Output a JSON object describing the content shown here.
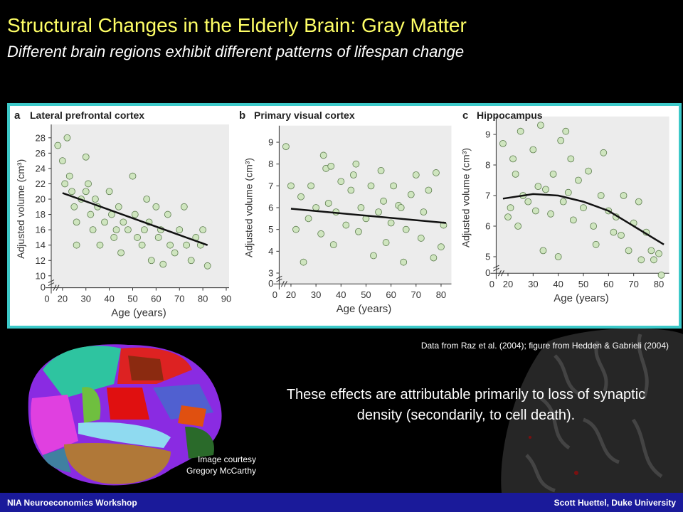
{
  "title": "Structural Changes in the Elderly Brain: Gray Matter",
  "subtitle": "Different brain regions exhibit different patterns of lifespan change",
  "source_note": "Data from Raz et al. (2004); figure from Hedden & Gabrieli (2004)",
  "body_text": "These effects are attributable primarily to loss of synaptic density (secondarily, to cell death).",
  "image_credit": [
    "Image courtesy",
    "Gregory McCarthy"
  ],
  "footer_left": "NIA Neuroeconomics Workshop",
  "footer_right": "Scott Huettel, Duke University",
  "chart_data": [
    {
      "type": "scatter",
      "panel_label": "a",
      "title": "Lateral prefrontal cortex",
      "xlabel": "Age (years)",
      "ylabel": "Adjusted volume (cm³)",
      "xlim": [
        17,
        90
      ],
      "xticks": [
        20,
        30,
        40,
        50,
        60,
        70,
        80,
        90
      ],
      "x_break_tick": 0,
      "ylim": [
        9,
        29
      ],
      "yticks": [
        10,
        12,
        14,
        16,
        18,
        20,
        22,
        24,
        26,
        28
      ],
      "y_break_tick": 0,
      "color": "#cfe5bf",
      "x": [
        18,
        22,
        20,
        21,
        23,
        24,
        25,
        26,
        28,
        30,
        31,
        32,
        33,
        35,
        36,
        38,
        40,
        41,
        42,
        44,
        45,
        46,
        48,
        50,
        51,
        52,
        54,
        56,
        57,
        58,
        60,
        61,
        62,
        63,
        65,
        66,
        68,
        70,
        72,
        73,
        75,
        77,
        79,
        80,
        82,
        26,
        30,
        34,
        43,
        55
      ],
      "values": [
        27,
        28,
        25,
        22,
        23,
        21,
        19,
        17,
        20,
        25.5,
        22,
        18,
        16,
        19,
        14,
        17,
        21,
        18,
        15,
        19,
        13,
        17,
        16,
        23,
        18,
        15,
        14,
        20,
        17,
        12,
        19,
        15,
        16,
        11.5,
        18,
        14,
        13,
        16,
        19,
        14,
        12,
        15,
        14,
        16,
        11.3,
        14,
        21,
        20,
        16,
        16
      ],
      "fit": {
        "x": [
          20,
          82
        ],
        "values": [
          20.8,
          14
        ],
        "color": "#111111"
      }
    },
    {
      "type": "scatter",
      "panel_label": "b",
      "title": "Primary visual cortex",
      "xlabel": "Age (years)",
      "ylabel": "Adjusted volume (cm³)",
      "xlim": [
        17,
        83
      ],
      "xticks": [
        20,
        30,
        40,
        50,
        60,
        70,
        80
      ],
      "x_break_tick": 0,
      "ylim": [
        2.7,
        9.5
      ],
      "yticks": [
        3,
        4,
        5,
        6,
        7,
        8,
        9
      ],
      "y_break_tick": 0,
      "color": "#cfe5bf",
      "x": [
        18,
        20,
        22,
        24,
        25,
        27,
        28,
        30,
        32,
        33,
        34,
        35,
        37,
        38,
        40,
        42,
        44,
        45,
        47,
        48,
        50,
        52,
        53,
        55,
        57,
        58,
        60,
        61,
        63,
        65,
        66,
        68,
        70,
        72,
        73,
        75,
        77,
        78,
        80,
        81,
        36,
        46,
        56,
        64
      ],
      "values": [
        8.8,
        7,
        5,
        6.5,
        3.5,
        5.5,
        7,
        6,
        4.8,
        8.4,
        7.8,
        6.2,
        4.3,
        5.8,
        7.2,
        5.2,
        6.8,
        7.5,
        4.9,
        6,
        5.5,
        7,
        3.8,
        5.8,
        6.3,
        4.4,
        5.3,
        7,
        6.1,
        3.5,
        5,
        6.6,
        7.5,
        4.6,
        5.8,
        6.8,
        3.7,
        7.6,
        4.2,
        5.2,
        7.9,
        8,
        7.7,
        6
      ],
      "fit": {
        "x": [
          20,
          82
        ],
        "values": [
          5.95,
          5.3
        ],
        "color": "#111111"
      }
    },
    {
      "type": "scatter",
      "panel_label": "c",
      "title": "Hippocampus",
      "xlabel": "Age (years)",
      "ylabel": "Adjusted volume (cm³)",
      "xlim": [
        17,
        83
      ],
      "xticks": [
        20,
        30,
        40,
        50,
        60,
        70,
        80
      ],
      "x_break_tick": 0,
      "ylim": [
        4.6,
        9.4
      ],
      "yticks": [
        5,
        6,
        7,
        8,
        9
      ],
      "y_break_tick": 0,
      "color": "#cfe5bf",
      "x": [
        18,
        20,
        21,
        22,
        23,
        24,
        25,
        26,
        28,
        30,
        31,
        32,
        33,
        34,
        35,
        37,
        38,
        40,
        41,
        42,
        43,
        44,
        46,
        48,
        50,
        52,
        54,
        55,
        57,
        58,
        60,
        62,
        63,
        65,
        66,
        68,
        70,
        72,
        73,
        75,
        77,
        78,
        80,
        81,
        45
      ],
      "values": [
        8.7,
        6.3,
        6.6,
        8.2,
        7.7,
        6,
        9.1,
        7,
        6.8,
        8.5,
        6.5,
        7.3,
        9.3,
        5.2,
        7.2,
        6.4,
        7.7,
        5,
        8.8,
        6.8,
        9.1,
        7.1,
        6.2,
        7.5,
        6.6,
        7.8,
        6,
        5.4,
        7,
        8.4,
        6.5,
        5.8,
        6.3,
        5.7,
        7,
        5.2,
        6.1,
        6.8,
        4.9,
        5.8,
        5.2,
        4.9,
        5.1,
        4.4,
        8.2
      ],
      "fit": {
        "x": [
          18,
          30,
          40,
          50,
          60,
          70,
          82
        ],
        "values": [
          6.9,
          7.05,
          7.0,
          6.8,
          6.5,
          6.0,
          5.4
        ],
        "color": "#111111"
      }
    }
  ]
}
